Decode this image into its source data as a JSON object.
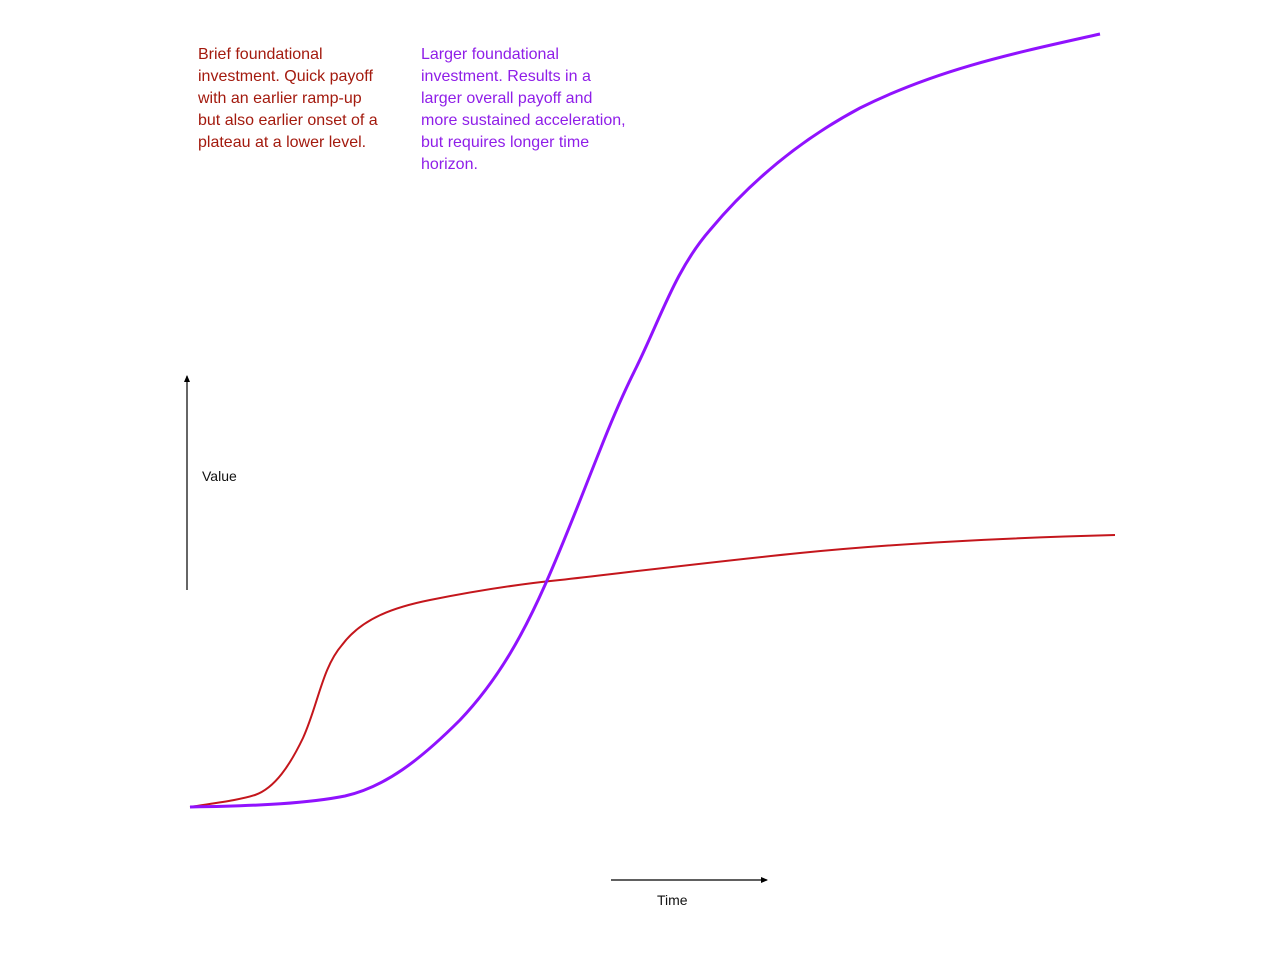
{
  "annotations": {
    "brief": {
      "text": "Brief foundational investment. Quick payoff with an earlier ramp-up but also earlier onset of a plateau at a lower level.",
      "color": "#a31a0e"
    },
    "larger": {
      "text": "Larger foundational investment. Results in a larger overall payoff and more sustained acceleration, but requires longer time horizon.",
      "color": "#8f1ee8"
    }
  },
  "axes": {
    "value_label": "Value",
    "time_label": "Time",
    "color": "#000000"
  },
  "curves": {
    "brief": {
      "color": "#c4161c"
    },
    "larger": {
      "color": "#9012fe"
    }
  }
}
